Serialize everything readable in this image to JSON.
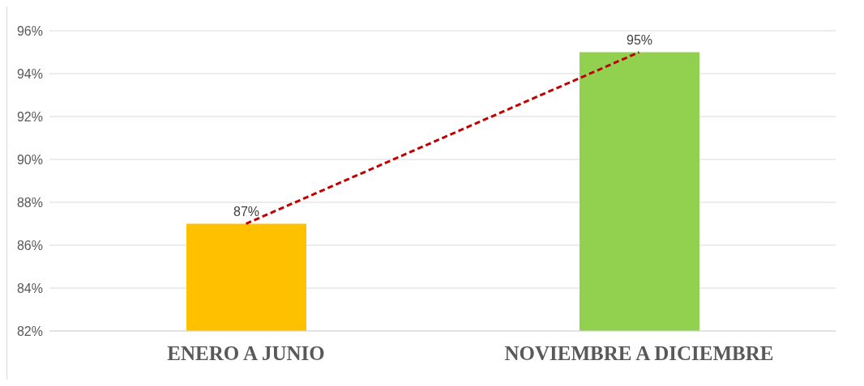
{
  "chart_data": {
    "type": "bar",
    "categories": [
      "ENERO A JUNIO",
      "NOVIEMBRE A DICIEMBRE"
    ],
    "series": [
      {
        "values": [
          87,
          95
        ],
        "colors": [
          "#ffc000",
          "#92d050"
        ],
        "value_labels": [
          "87%",
          "95%"
        ]
      },
      {
        "type": "line",
        "values": [
          87,
          95
        ],
        "color": "#c00000",
        "line_style": "dashed",
        "marker": "none"
      }
    ],
    "ylim": [
      82,
      96
    ],
    "yticks": [
      {
        "value": 82,
        "label": "82%"
      },
      {
        "value": 84,
        "label": "84%"
      },
      {
        "value": 86,
        "label": "86%"
      },
      {
        "value": 88,
        "label": "88%"
      },
      {
        "value": 90,
        "label": "90%"
      },
      {
        "value": 92,
        "label": "92%"
      },
      {
        "value": 94,
        "label": "94%"
      },
      {
        "value": 96,
        "label": "96%"
      }
    ],
    "grid": "y",
    "legend": false
  }
}
